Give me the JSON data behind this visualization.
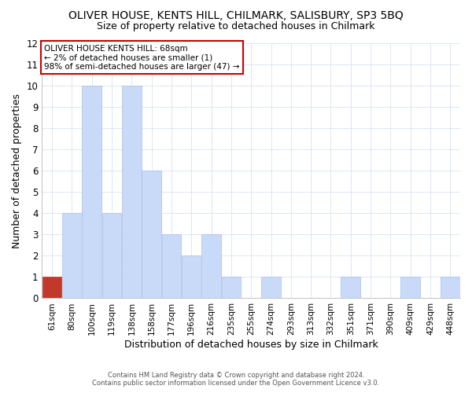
{
  "title": "OLIVER HOUSE, KENTS HILL, CHILMARK, SALISBURY, SP3 5BQ",
  "subtitle": "Size of property relative to detached houses in Chilmark",
  "xlabel": "Distribution of detached houses by size in Chilmark",
  "ylabel": "Number of detached properties",
  "bin_labels": [
    "61sqm",
    "80sqm",
    "100sqm",
    "119sqm",
    "138sqm",
    "158sqm",
    "177sqm",
    "196sqm",
    "216sqm",
    "235sqm",
    "255sqm",
    "274sqm",
    "293sqm",
    "313sqm",
    "332sqm",
    "351sqm",
    "371sqm",
    "390sqm",
    "409sqm",
    "429sqm",
    "448sqm"
  ],
  "counts": [
    1,
    4,
    10,
    4,
    10,
    6,
    3,
    2,
    3,
    1,
    0,
    1,
    0,
    0,
    0,
    1,
    0,
    0,
    1,
    0,
    1
  ],
  "highlight_bin": 0,
  "highlight_color": "#c0392b",
  "bar_color": "#c9daf8",
  "bar_edge_color": "#a8c0e8",
  "ylim": [
    0,
    12
  ],
  "yticks": [
    0,
    1,
    2,
    3,
    4,
    5,
    6,
    7,
    8,
    9,
    10,
    11,
    12
  ],
  "annotation_title": "OLIVER HOUSE KENTS HILL: 68sqm",
  "annotation_line1": "← 2% of detached houses are smaller (1)",
  "annotation_line2": "98% of semi-detached houses are larger (47) →",
  "box_edge_color": "#cc0000",
  "footer1": "Contains HM Land Registry data © Crown copyright and database right 2024.",
  "footer2": "Contains public sector information licensed under the Open Government Licence v3.0.",
  "grid_color": "#dce6f5",
  "title_fontsize": 10,
  "subtitle_fontsize": 9
}
